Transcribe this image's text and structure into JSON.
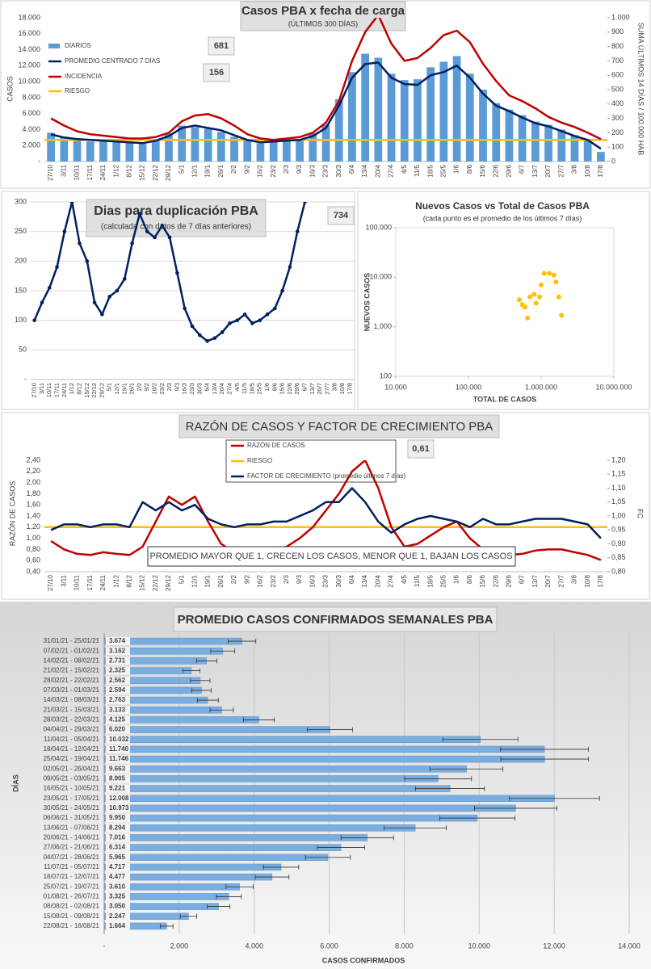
{
  "chart_data": [
    {
      "type": "bar",
      "title": "Casos PBA x fecha de carga",
      "subtitle": "(ÚLTIMOS 300 DÍAS)",
      "ylabel": "CASOS",
      "y2label": "SUMA ÚLTIMOS 14 DÍAS / 100.000 HAB",
      "categories": [
        "27/10",
        "3/11",
        "10/11",
        "17/11",
        "24/11",
        "1/12",
        "8/12",
        "15/12",
        "22/12",
        "29/12",
        "5/1",
        "12/1",
        "19/1",
        "26/1",
        "2/2",
        "9/2",
        "16/2",
        "23/2",
        "2/3",
        "9/3",
        "16/3",
        "23/3",
        "30/3",
        "6/4",
        "13/4",
        "20/4",
        "27/4",
        "4/5",
        "11/5",
        "18/5",
        "25/5",
        "1/6",
        "8/6",
        "15/6",
        "22/6",
        "29/6",
        "6/7",
        "13/7",
        "20/7",
        "27/7",
        "3/8",
        "10/8",
        "17/8"
      ],
      "series": [
        {
          "name": "DIARIOS",
          "type": "bar",
          "color": "#5b9bd5",
          "values": [
            3600,
            3100,
            2900,
            2500,
            2700,
            2400,
            2500,
            2200,
            2800,
            3500,
            4500,
            4300,
            4100,
            3700,
            3100,
            2600,
            2300,
            2600,
            2500,
            2800,
            3500,
            4600,
            7800,
            11200,
            13500,
            13000,
            11000,
            10200,
            10300,
            11800,
            12500,
            13200,
            11000,
            9000,
            7300,
            6500,
            5800,
            5000,
            4600,
            4000,
            3300,
            2800,
            1200
          ]
        },
        {
          "name": "PROMEDIO CENTRADO 7 DÍAS",
          "type": "line",
          "color": "#002060",
          "values": [
            3400,
            3000,
            2800,
            2700,
            2600,
            2500,
            2400,
            2300,
            2600,
            3200,
            4200,
            4500,
            4200,
            3900,
            3300,
            2700,
            2400,
            2500,
            2600,
            2700,
            3200,
            4200,
            7000,
            10500,
            12200,
            12400,
            10500,
            9700,
            9600,
            10800,
            11200,
            12000,
            10500,
            8500,
            7000,
            6300,
            5500,
            4800,
            4400,
            3800,
            3200,
            2700,
            1600
          ]
        },
        {
          "name": "INCIDENCIA",
          "type": "line",
          "axis": "y2",
          "color": "#c00000",
          "values": [
            300,
            250,
            210,
            190,
            180,
            170,
            160,
            160,
            170,
            200,
            280,
            320,
            330,
            300,
            250,
            190,
            160,
            150,
            160,
            170,
            200,
            270,
            420,
            700,
            900,
            1020,
            820,
            700,
            720,
            790,
            880,
            910,
            830,
            680,
            560,
            460,
            420,
            370,
            310,
            270,
            240,
            200,
            156
          ]
        }
      ],
      "reference_lines": [
        {
          "name": "RIESGO",
          "value": 150,
          "axis": "y2",
          "color": "#ffc000"
        }
      ],
      "boxes": [
        681,
        156
      ],
      "ylim": [
        0,
        18000
      ],
      "yticks": [
        {
          "value": 0,
          "label": "-"
        },
        {
          "value": 2000,
          "label": "2.000"
        },
        {
          "value": 4000,
          "label": "4.000"
        },
        {
          "value": 6000,
          "label": "6.000"
        },
        {
          "value": 8000,
          "label": "8.000"
        },
        {
          "value": 10000,
          "label": "10.000"
        },
        {
          "value": 12000,
          "label": "12.000"
        },
        {
          "value": 14000,
          "label": "14.000"
        },
        {
          "value": 16000,
          "label": "16.000"
        },
        {
          "value": 18000,
          "label": "18.000"
        }
      ],
      "y2lim": [
        0,
        1000
      ],
      "y2ticks": [
        0,
        100,
        200,
        300,
        400,
        500,
        600,
        700,
        800,
        900,
        {
          "value": 1000,
          "label": "1.000"
        }
      ],
      "grid": false
    },
    {
      "type": "line",
      "title": "Dias para duplicación PBA",
      "subtitle": "(calculada con datos de 7 días anteriores)",
      "color": "#002060",
      "markers": true,
      "categories": [
        "27/10",
        "3/11",
        "10/11",
        "17/11",
        "24/11",
        "1/12",
        "8/12",
        "15/12",
        "22/12",
        "29/12",
        "5/1",
        "12/1",
        "19/1",
        "26/1",
        "2/2",
        "9/2",
        "16/2",
        "23/2",
        "2/3",
        "9/3",
        "16/3",
        "23/3",
        "30/3",
        "6/4",
        "13/4",
        "20/4",
        "27/4",
        "4/5",
        "11/5",
        "18/5",
        "25/5",
        "1/6",
        "8/6",
        "15/6",
        "22/6",
        "29/6",
        "6/7",
        "13/7",
        "20/7",
        "27/7",
        "3/8",
        "10/8",
        "17/8"
      ],
      "values": [
        100,
        130,
        155,
        190,
        250,
        300,
        230,
        200,
        130,
        110,
        140,
        150,
        170,
        230,
        280,
        250,
        240,
        260,
        240,
        180,
        120,
        90,
        75,
        65,
        70,
        80,
        95,
        100,
        110,
        95,
        100,
        110,
        120,
        150,
        190,
        250,
        300,
        320,
        null,
        null,
        null,
        null,
        null
      ],
      "boxes": [
        734
      ],
      "ylim": [
        0,
        300
      ],
      "yticks": [
        {
          "value": 0,
          "label": "-"
        },
        50,
        100,
        150,
        200,
        250,
        300
      ],
      "grid": true
    },
    {
      "type": "scatter",
      "title": "Nuevos Casos vs Total de Casos PBA",
      "subtitle": "(cada punto es el promedio de los últimos 7 días)",
      "xlabel": "TOTAL DE CASOS",
      "ylabel": "NUEVOS CASOS",
      "color": "#ffc000",
      "x": [
        500000,
        550000,
        600000,
        650000,
        700000,
        800000,
        850000,
        950000,
        1000000,
        1100000,
        1300000,
        1500000,
        1600000,
        1750000,
        1900000
      ],
      "y": [
        3500,
        2800,
        2500,
        1500,
        4000,
        4500,
        3000,
        4000,
        7000,
        12000,
        12000,
        11000,
        8000,
        4000,
        1700
      ],
      "xscale": "log",
      "yscale": "log",
      "xlim": [
        10000,
        10000000
      ],
      "xticks": [
        {
          "value": 10000,
          "label": "10.000"
        },
        {
          "value": 100000,
          "label": "100.000"
        },
        {
          "value": 1000000,
          "label": "1.000.000"
        },
        {
          "value": 10000000,
          "label": "10.000.000"
        }
      ],
      "ylim": [
        100,
        100000
      ],
      "yticks": [
        100,
        {
          "value": 1000,
          "label": "1.000"
        },
        {
          "value": 10000,
          "label": "10.000"
        },
        {
          "value": 100000,
          "label": "100.000"
        }
      ],
      "grid": false
    },
    {
      "type": "line",
      "title": "RAZÓN DE CASOS Y FACTOR DE CRECIMIENTO PBA",
      "ylabel": "RAZÓN DE CASOS",
      "y2label": "FC",
      "annotation": "PROMEDIO MAYOR QUE 1, CRECEN LOS CASOS, MENOR QUE 1, BAJAN LOS CASOS",
      "categories": [
        "27/10",
        "3/11",
        "10/11",
        "17/11",
        "24/11",
        "1/12",
        "8/12",
        "15/12",
        "22/12",
        "29/12",
        "5/1",
        "12/1",
        "19/1",
        "26/1",
        "2/2",
        "9/2",
        "16/2",
        "23/2",
        "2/3",
        "9/3",
        "16/3",
        "23/3",
        "30/3",
        "6/4",
        "13/4",
        "20/4",
        "27/4",
        "4/5",
        "11/5",
        "18/5",
        "25/5",
        "1/6",
        "8/6",
        "15/6",
        "22/6",
        "29/6",
        "6/7",
        "13/7",
        "20/7",
        "27/7",
        "3/8",
        "10/8",
        "17/8"
      ],
      "series": [
        {
          "name": "RAZÓN DE CASOS",
          "type": "line",
          "color": "#c00000",
          "values": [
            0.95,
            0.8,
            0.72,
            0.7,
            0.75,
            0.72,
            0.7,
            0.85,
            1.3,
            1.75,
            1.6,
            1.75,
            1.3,
            0.9,
            0.75,
            0.7,
            0.75,
            0.8,
            0.85,
            1.0,
            1.2,
            1.5,
            1.8,
            2.2,
            2.4,
            1.9,
            1.2,
            0.85,
            0.9,
            1.05,
            1.2,
            1.3,
            1.0,
            0.8,
            0.72,
            0.7,
            0.72,
            0.78,
            0.8,
            0.8,
            0.75,
            0.7,
            0.61
          ]
        },
        {
          "name": "FACTOR DE CRECIMIENTO (promedio últimos 7 días)",
          "type": "line",
          "axis": "y2",
          "color": "#002060",
          "values": [
            0.95,
            0.97,
            0.97,
            0.96,
            0.97,
            0.97,
            0.96,
            1.05,
            1.02,
            1.05,
            1.02,
            1.04,
            0.99,
            0.97,
            0.96,
            0.97,
            0.97,
            0.98,
            0.98,
            1.0,
            1.02,
            1.05,
            1.05,
            1.1,
            1.05,
            0.98,
            0.94,
            0.97,
            0.99,
            1.0,
            0.99,
            0.98,
            0.96,
            0.99,
            0.97,
            0.97,
            0.98,
            0.99,
            0.99,
            0.99,
            0.98,
            0.97,
            0.92
          ]
        }
      ],
      "reference_lines": [
        {
          "name": "RIESGO",
          "value": 1.2,
          "color": "#ffc000"
        }
      ],
      "boxes": [
        {
          "value": 0.61,
          "label": "0,61"
        }
      ],
      "ylim": [
        0.4,
        2.4
      ],
      "yticks": [
        {
          "value": 0.4,
          "label": "0,40"
        },
        {
          "value": 0.6,
          "label": "0,60"
        },
        {
          "value": 0.8,
          "label": "0,80"
        },
        {
          "value": 1.0,
          "label": "1,00"
        },
        {
          "value": 1.2,
          "label": "1,20"
        },
        {
          "value": 1.4,
          "label": "1,40"
        },
        {
          "value": 1.6,
          "label": "1,60"
        },
        {
          "value": 1.8,
          "label": "1,80"
        },
        {
          "value": 2.0,
          "label": "2,00"
        },
        {
          "value": 2.2,
          "label": "2,20"
        },
        {
          "value": 2.4,
          "label": "2,40"
        }
      ],
      "y2lim": [
        0.8,
        1.2
      ],
      "y2ticks": [
        {
          "value": 0.8,
          "label": "0,80"
        },
        {
          "value": 0.85,
          "label": "0,85"
        },
        {
          "value": 0.9,
          "label": "0,90"
        },
        {
          "value": 0.95,
          "label": "0,95"
        },
        {
          "value": 1.0,
          "label": "1,00"
        },
        {
          "value": 1.05,
          "label": "1,05"
        },
        {
          "value": 1.1,
          "label": "1,10"
        },
        {
          "value": 1.15,
          "label": "1,15"
        },
        {
          "value": 1.2,
          "label": "1,20"
        }
      ],
      "grid": false
    },
    {
      "type": "bar",
      "orientation": "horizontal",
      "title": "PROMEDIO CASOS CONFIRMADOS SEMANALES PBA",
      "xlabel": "CASOS CONFIRMADOS",
      "ylabel": "DÍAS",
      "color": "#7aaee0",
      "categories": [
        "31/01/21 - 25/01/21",
        "07/02/21 - 01/02/21",
        "14/02/21 - 08/02/21",
        "21/02/21 - 15/02/21",
        "28/02/21 - 22/02/21",
        "07/03/21 - 01/03/21",
        "14/03/21 - 08/03/21",
        "21/03/21 - 15/03/21",
        "28/03/21 - 22/03/21",
        "04/04/21 - 29/03/21",
        "11/04/21 - 05/04/21",
        "18/04/21 - 12/04/21",
        "25/04/21 - 19/04/21",
        "02/05/21 - 26/04/21",
        "09/05/21 - 03/05/21",
        "16/05/21 - 10/05/21",
        "23/05/21 - 17/05/21",
        "30/05/21 - 24/05/21",
        "06/06/21 - 31/05/21",
        "13/06/21 - 07/06/21",
        "20/06/21 - 14/06/21",
        "27/06/21 - 21/06/21",
        "04/07/21 - 28/06/21",
        "11/07/21 - 05/07/21",
        "18/07/21 - 12/07/21",
        "25/07/21 - 19/07/21",
        "01/08/21 - 26/07/21",
        "08/08/21 - 02/08/21",
        "15/08/21 - 09/08/21",
        "22/08/21 - 16/08/21"
      ],
      "values": [
        3674,
        3162,
        2731,
        2325,
        2562,
        2594,
        2763,
        3133,
        4125,
        6020,
        10032,
        11740,
        11746,
        9663,
        8905,
        9221,
        12008,
        10973,
        9950,
        8294,
        7016,
        6314,
        5965,
        4717,
        4477,
        3610,
        3325,
        3050,
        2247,
        1664
      ],
      "value_labels": [
        "3.674",
        "3.162",
        "2.731",
        "2.325",
        "2.562",
        "2.594",
        "2.763",
        "3.133",
        "4.125",
        "6.020",
        "10.032",
        "11.740",
        "11.746",
        "9.663",
        "8.905",
        "9.221",
        "12.008",
        "10.973",
        "9.950",
        "8.294",
        "7.016",
        "6.314",
        "5.965",
        "4.717",
        "4.477",
        "3.610",
        "3.325",
        "3.050",
        "2.247",
        "1.664"
      ],
      "errors": [
        370,
        320,
        270,
        230,
        260,
        260,
        280,
        310,
        410,
        600,
        1000,
        1170,
        1170,
        970,
        890,
        920,
        1200,
        1100,
        1000,
        830,
        700,
        630,
        600,
        470,
        450,
        360,
        330,
        300,
        220,
        170
      ],
      "xlim": [
        0,
        14000
      ],
      "xticks": [
        {
          "value": 0,
          "label": "-"
        },
        {
          "value": 2000,
          "label": "2.000"
        },
        {
          "value": 4000,
          "label": "4.000"
        },
        {
          "value": 6000,
          "label": "6.000"
        },
        {
          "value": 8000,
          "label": "8.000"
        },
        {
          "value": 10000,
          "label": "10.000"
        },
        {
          "value": 12000,
          "label": "12.000"
        },
        {
          "value": 14000,
          "label": "14.000"
        }
      ],
      "grid": true
    }
  ]
}
